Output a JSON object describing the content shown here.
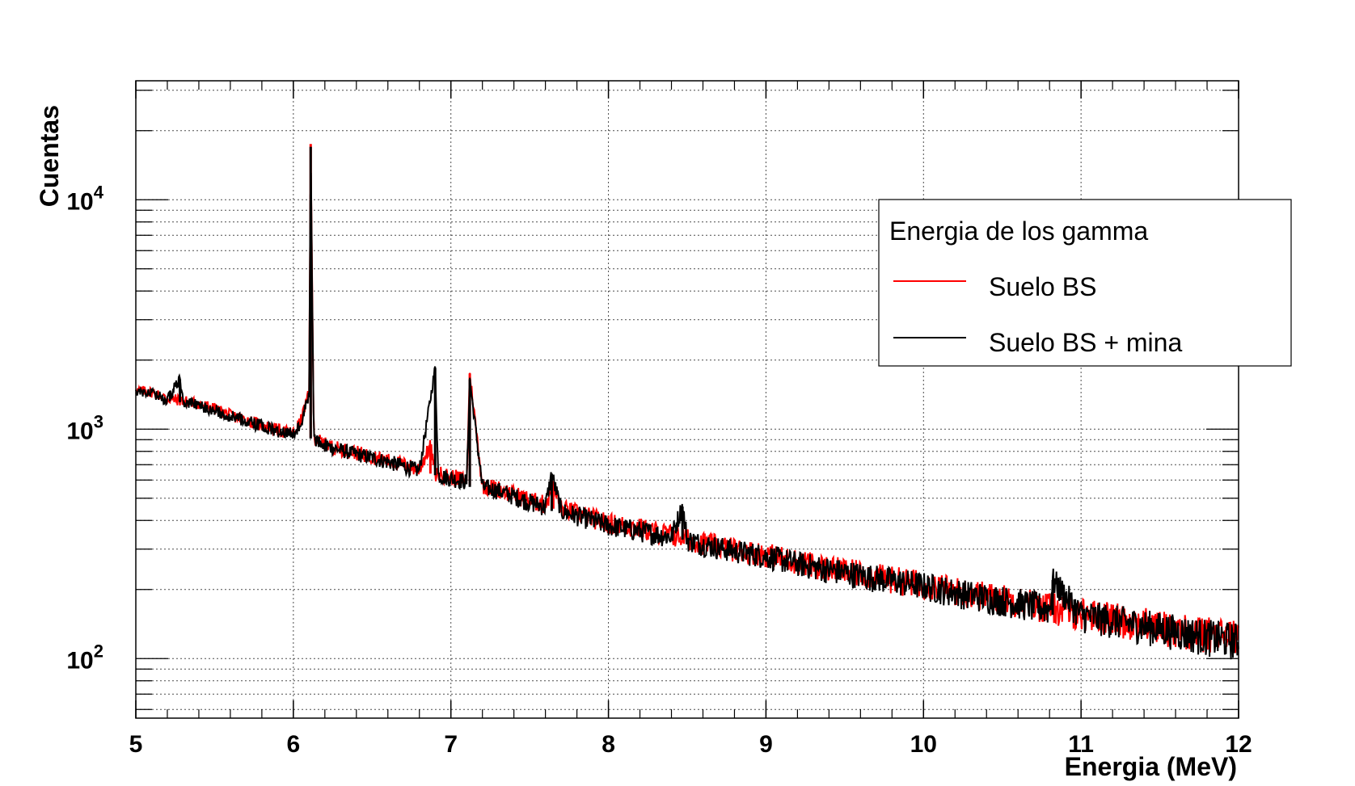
{
  "chart_data": {
    "type": "line",
    "title": "",
    "xlabel": "Energia (MeV)",
    "ylabel": "Cuentas",
    "xlim": [
      5,
      12
    ],
    "ylim": [
      55,
      33000
    ],
    "yscale": "log",
    "grid": true,
    "x_ticks": [
      "5",
      "6",
      "7",
      "8",
      "9",
      "10",
      "11",
      "12"
    ],
    "y_ticks": [
      {
        "base": "10",
        "exp": "2",
        "value": 100
      },
      {
        "base": "10",
        "exp": "3",
        "value": 1000
      },
      {
        "base": "10",
        "exp": "4",
        "value": 10000
      }
    ],
    "legend": {
      "title": "Energia de los gamma",
      "placement": "right",
      "entries": [
        "Suelo BS",
        "Suelo BS + mina"
      ]
    },
    "series": [
      {
        "name": "Suelo BS",
        "color": "#ff0000",
        "x": [
          5.0,
          5.1,
          5.2,
          5.3,
          5.4,
          5.5,
          5.6,
          5.7,
          5.8,
          5.9,
          6.0,
          6.05,
          6.1,
          6.11,
          6.13,
          6.2,
          6.3,
          6.4,
          6.5,
          6.6,
          6.7,
          6.8,
          6.87,
          6.9,
          6.92,
          7.0,
          7.1,
          7.12,
          7.2,
          7.3,
          7.4,
          7.5,
          7.6,
          7.65,
          7.7,
          7.8,
          7.9,
          8.0,
          8.2,
          8.4,
          8.5,
          8.6,
          8.8,
          9.0,
          9.2,
          9.4,
          9.6,
          9.8,
          10.0,
          10.2,
          10.4,
          10.6,
          10.8,
          11.0,
          11.2,
          11.4,
          11.6,
          11.8,
          12.0
        ],
        "y": [
          1480,
          1450,
          1360,
          1330,
          1290,
          1230,
          1150,
          1100,
          1040,
          990,
          960,
          1100,
          1450,
          17500,
          920,
          860,
          820,
          790,
          760,
          730,
          700,
          670,
          850,
          640,
          640,
          620,
          600,
          1750,
          570,
          550,
          520,
          490,
          470,
          560,
          450,
          430,
          410,
          390,
          370,
          345,
          335,
          320,
          300,
          285,
          265,
          248,
          235,
          222,
          212,
          198,
          188,
          178,
          168,
          158,
          150,
          142,
          135,
          128,
          125
        ]
      },
      {
        "name": "Suelo BS + mina",
        "color": "#000000",
        "x": [
          5.0,
          5.1,
          5.2,
          5.28,
          5.3,
          5.4,
          5.5,
          5.6,
          5.7,
          5.8,
          5.9,
          6.0,
          6.05,
          6.1,
          6.11,
          6.13,
          6.2,
          6.3,
          6.4,
          6.5,
          6.6,
          6.7,
          6.8,
          6.9,
          6.92,
          7.0,
          7.1,
          7.12,
          7.2,
          7.3,
          7.4,
          7.5,
          7.6,
          7.64,
          7.7,
          7.8,
          7.9,
          8.0,
          8.2,
          8.4,
          8.47,
          8.5,
          8.6,
          8.8,
          9.0,
          9.2,
          9.4,
          9.6,
          9.8,
          10.0,
          10.2,
          10.4,
          10.6,
          10.8,
          10.82,
          11.0,
          11.2,
          11.4,
          11.6,
          11.8,
          12.0
        ],
        "y": [
          1470,
          1430,
          1340,
          1650,
          1310,
          1270,
          1210,
          1140,
          1090,
          1030,
          980,
          950,
          1080,
          1420,
          17000,
          910,
          850,
          810,
          780,
          750,
          720,
          690,
          660,
          1850,
          630,
          610,
          590,
          1650,
          560,
          540,
          510,
          480,
          460,
          640,
          440,
          420,
          400,
          380,
          360,
          340,
          460,
          330,
          315,
          295,
          280,
          260,
          244,
          231,
          219,
          208,
          195,
          185,
          175,
          165,
          220,
          155,
          147,
          139,
          132,
          125,
          120
        ]
      }
    ]
  }
}
